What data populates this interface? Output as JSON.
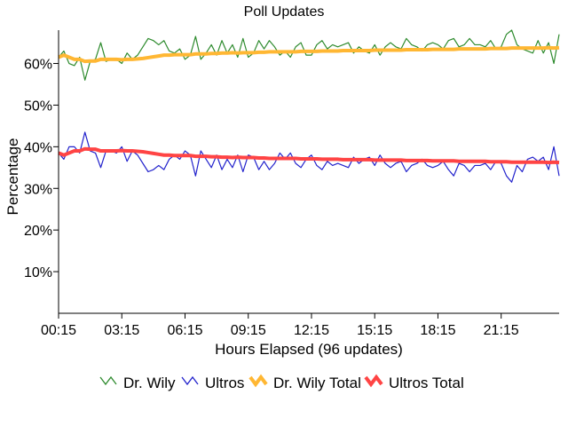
{
  "chart_data": {
    "type": "line",
    "title": "Poll Updates",
    "xlabel": "Hours Elapsed (96 updates)",
    "ylabel": "Percentage",
    "x_tick_labels": [
      "00:15",
      "03:15",
      "06:15",
      "09:15",
      "12:15",
      "15:15",
      "18:15",
      "21:15"
    ],
    "x_tick_index": [
      0,
      12,
      24,
      36,
      48,
      60,
      72,
      84
    ],
    "y_ticks": [
      10,
      20,
      30,
      40,
      50,
      60
    ],
    "y_tick_labels": [
      "10%",
      "20%",
      "30%",
      "40%",
      "50%",
      "60%"
    ],
    "ylim": [
      0,
      68
    ],
    "x_count": 96,
    "grid": false,
    "legend_position": "bottom",
    "series": [
      {
        "name": "Dr. Wily",
        "color": "#2e8b2e",
        "style": "thin",
        "values": [
          61.5,
          63.0,
          60.0,
          59.5,
          61.5,
          56.0,
          60.5,
          61.0,
          65.0,
          60.5,
          61.0,
          61.0,
          60.0,
          62.5,
          61.0,
          62.0,
          64.0,
          66.0,
          65.5,
          64.5,
          65.5,
          63.0,
          62.5,
          63.5,
          61.0,
          62.0,
          66.5,
          61.0,
          62.5,
          64.5,
          62.0,
          65.5,
          62.5,
          64.5,
          61.5,
          66.0,
          61.5,
          62.5,
          65.5,
          63.5,
          65.5,
          64.0,
          62.0,
          63.0,
          61.5,
          64.0,
          65.0,
          62.0,
          62.0,
          64.5,
          65.5,
          63.5,
          64.5,
          64.0,
          64.5,
          65.0,
          62.5,
          64.0,
          63.0,
          62.5,
          64.5,
          62.0,
          64.0,
          65.0,
          64.0,
          63.5,
          66.0,
          64.5,
          64.0,
          63.0,
          64.5,
          65.0,
          64.5,
          63.5,
          65.5,
          66.0,
          64.0,
          64.5,
          66.0,
          64.5,
          64.5,
          64.0,
          65.5,
          63.5,
          64.0,
          67.0,
          68.0,
          64.5,
          63.5,
          63.0,
          62.5,
          65.5,
          62.5,
          65.0,
          60.0,
          67.0
        ]
      },
      {
        "name": "Ultros",
        "color": "#2222cc",
        "style": "thin",
        "values": [
          38.5,
          37.0,
          40.0,
          40.0,
          38.5,
          43.5,
          39.0,
          38.5,
          35.0,
          39.0,
          39.0,
          38.5,
          40.0,
          36.5,
          39.0,
          38.0,
          36.0,
          34.0,
          34.5,
          35.5,
          34.5,
          37.0,
          38.0,
          37.0,
          39.0,
          38.0,
          33.0,
          39.0,
          37.0,
          35.0,
          38.0,
          34.5,
          37.0,
          35.0,
          38.0,
          34.0,
          38.0,
          37.5,
          34.5,
          36.5,
          34.5,
          36.0,
          38.5,
          37.0,
          38.5,
          36.0,
          35.0,
          37.0,
          38.0,
          35.5,
          34.5,
          36.5,
          35.5,
          36.0,
          35.5,
          35.0,
          37.5,
          36.0,
          37.0,
          37.5,
          35.5,
          38.0,
          36.0,
          35.0,
          36.0,
          36.5,
          34.0,
          35.5,
          36.0,
          37.0,
          35.5,
          35.0,
          35.5,
          36.5,
          34.5,
          33.0,
          36.0,
          35.5,
          34.0,
          35.5,
          35.5,
          36.0,
          34.5,
          36.5,
          36.0,
          33.0,
          31.5,
          35.5,
          34.0,
          37.0,
          37.5,
          36.5,
          37.5,
          34.5,
          40.0,
          33.0
        ]
      },
      {
        "name": "Dr. Wily Total",
        "color": "#ffb733",
        "style": "thick",
        "values": [
          61.5,
          62.0,
          61.5,
          61.0,
          61.0,
          60.5,
          60.6,
          60.6,
          61.0,
          61.0,
          61.0,
          61.0,
          60.9,
          61.0,
          61.0,
          61.1,
          61.2,
          61.4,
          61.6,
          61.8,
          62.0,
          62.0,
          62.1,
          62.1,
          62.1,
          62.1,
          62.3,
          62.3,
          62.3,
          62.4,
          62.4,
          62.5,
          62.5,
          62.6,
          62.5,
          62.6,
          62.6,
          62.6,
          62.7,
          62.7,
          62.8,
          62.8,
          62.8,
          62.8,
          62.8,
          62.8,
          62.9,
          62.9,
          62.9,
          62.9,
          63.0,
          63.0,
          63.0,
          63.0,
          63.1,
          63.1,
          63.1,
          63.1,
          63.1,
          63.1,
          63.2,
          63.2,
          63.2,
          63.2,
          63.2,
          63.2,
          63.3,
          63.3,
          63.3,
          63.3,
          63.3,
          63.4,
          63.4,
          63.4,
          63.4,
          63.4,
          63.5,
          63.5,
          63.5,
          63.5,
          63.5,
          63.5,
          63.6,
          63.6,
          63.6,
          63.6,
          63.7,
          63.7,
          63.7,
          63.7,
          63.7,
          63.7,
          63.7,
          63.8,
          63.7,
          63.8
        ]
      },
      {
        "name": "Ultros Total",
        "color": "#ff4444",
        "style": "thick",
        "values": [
          38.5,
          38.0,
          38.5,
          39.0,
          39.0,
          39.5,
          39.4,
          39.4,
          39.0,
          39.0,
          39.0,
          39.0,
          39.1,
          39.0,
          39.0,
          38.9,
          38.8,
          38.6,
          38.4,
          38.2,
          38.0,
          38.0,
          37.9,
          37.9,
          37.9,
          37.9,
          37.7,
          37.7,
          37.7,
          37.6,
          37.6,
          37.5,
          37.5,
          37.4,
          37.5,
          37.4,
          37.4,
          37.4,
          37.3,
          37.3,
          37.2,
          37.2,
          37.2,
          37.2,
          37.2,
          37.2,
          37.1,
          37.1,
          37.1,
          37.1,
          37.0,
          37.0,
          37.0,
          37.0,
          36.9,
          36.9,
          36.9,
          36.9,
          36.9,
          36.9,
          36.8,
          36.8,
          36.8,
          36.8,
          36.8,
          36.8,
          36.7,
          36.7,
          36.7,
          36.7,
          36.7,
          36.6,
          36.6,
          36.6,
          36.6,
          36.6,
          36.5,
          36.5,
          36.5,
          36.5,
          36.5,
          36.5,
          36.4,
          36.4,
          36.4,
          36.4,
          36.3,
          36.3,
          36.3,
          36.3,
          36.3,
          36.3,
          36.3,
          36.2,
          36.3,
          36.2
        ]
      }
    ]
  }
}
